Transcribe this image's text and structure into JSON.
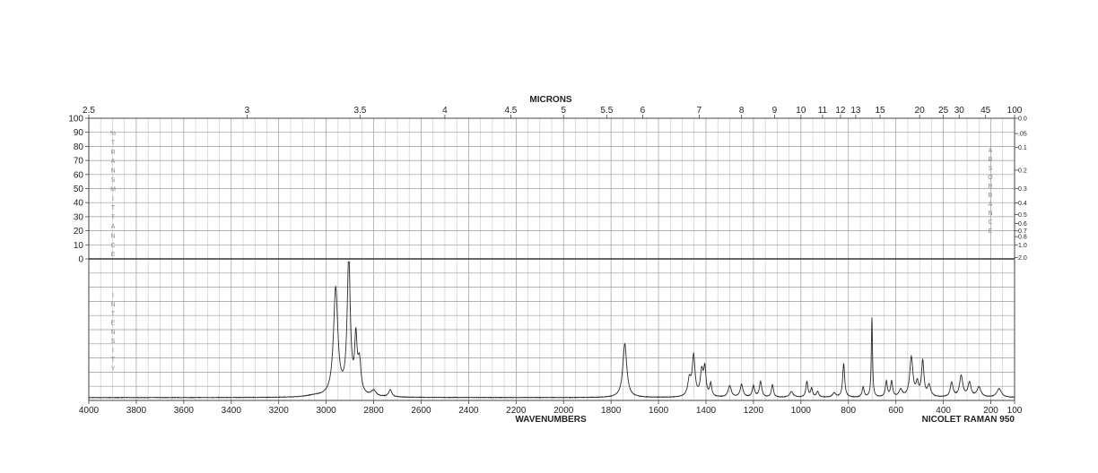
{
  "chart_data": {
    "type": "line",
    "top_axis_title": "MICRONS",
    "bottom_axis_title": "WAVENUMBERS",
    "instrument_label": "NICOLET RAMAN 950",
    "left_label_top": "%TRANSMITTANCE",
    "left_label_bottom": "INTENSITY",
    "right_label_top": "ABSORBANCE",
    "xlim": [
      4000,
      100
    ],
    "x_ticks": [
      4000,
      3800,
      3600,
      3400,
      3200,
      3000,
      2800,
      2600,
      2400,
      2200,
      2000,
      1800,
      1600,
      1400,
      1200,
      1000,
      800,
      600,
      400,
      200,
      100
    ],
    "micron_ticks": [
      {
        "label": "2.5",
        "um": 2.5
      },
      {
        "label": "3",
        "um": 3
      },
      {
        "label": "3.5",
        "um": 3.5
      },
      {
        "label": "4",
        "um": 4
      },
      {
        "label": "4.5",
        "um": 4.5
      },
      {
        "label": "5",
        "um": 5
      },
      {
        "label": "5.5",
        "um": 5.5
      },
      {
        "label": "6",
        "um": 6
      },
      {
        "label": "7",
        "um": 7
      },
      {
        "label": "8",
        "um": 8
      },
      {
        "label": "9",
        "um": 9
      },
      {
        "label": "10",
        "um": 10
      },
      {
        "label": "11",
        "um": 11
      },
      {
        "label": "12",
        "um": 12
      },
      {
        "label": "13",
        "um": 13
      },
      {
        "label": "15",
        "um": 15
      },
      {
        "label": "20",
        "um": 20
      },
      {
        "label": "25",
        "um": 25
      },
      {
        "label": "30",
        "um": 30
      },
      {
        "label": "45",
        "um": 45
      },
      {
        "label": "100",
        "um": 100
      }
    ],
    "transmittance_ticks": [
      "100",
      "90",
      "80",
      "70",
      "60",
      "50",
      "40",
      "30",
      "20",
      "10",
      "0"
    ],
    "absorbance_ticks": [
      {
        "label": "0.0",
        "a": 0.0
      },
      {
        "label": ".05",
        "a": 0.05
      },
      {
        "label": "0.1",
        "a": 0.1
      },
      {
        "label": "0.2",
        "a": 0.2
      },
      {
        "label": "0.3",
        "a": 0.3
      },
      {
        "label": "0.4",
        "a": 0.4
      },
      {
        "label": "0.5",
        "a": 0.5
      },
      {
        "label": "0.6",
        "a": 0.6
      },
      {
        "label": "0.7",
        "a": 0.7
      },
      {
        "label": "0.8",
        "a": 0.8
      },
      {
        "label": "1.0",
        "a": 1.0
      },
      {
        "label": "2.0",
        "a": 2.0
      }
    ],
    "intensity_range": [
      0,
      100
    ],
    "baseline": 2,
    "peaks": [
      {
        "x": 3050,
        "h": 1.0,
        "w": 40
      },
      {
        "x": 2960,
        "h": 76,
        "w": 11
      },
      {
        "x": 2905,
        "h": 96,
        "w": 8
      },
      {
        "x": 2875,
        "h": 37,
        "w": 6
      },
      {
        "x": 2860,
        "h": 22,
        "w": 8
      },
      {
        "x": 2800,
        "h": 4,
        "w": 12
      },
      {
        "x": 2730,
        "h": 5,
        "w": 8
      },
      {
        "x": 1742,
        "h": 38,
        "w": 10
      },
      {
        "x": 1470,
        "h": 12,
        "w": 8
      },
      {
        "x": 1452,
        "h": 28,
        "w": 7
      },
      {
        "x": 1418,
        "h": 17,
        "w": 7
      },
      {
        "x": 1405,
        "h": 19,
        "w": 6
      },
      {
        "x": 1380,
        "h": 9,
        "w": 5
      },
      {
        "x": 1300,
        "h": 8,
        "w": 8
      },
      {
        "x": 1250,
        "h": 9,
        "w": 7
      },
      {
        "x": 1200,
        "h": 8,
        "w": 6
      },
      {
        "x": 1170,
        "h": 11,
        "w": 6
      },
      {
        "x": 1120,
        "h": 9,
        "w": 5
      },
      {
        "x": 1040,
        "h": 4,
        "w": 9
      },
      {
        "x": 975,
        "h": 11,
        "w": 5
      },
      {
        "x": 955,
        "h": 6,
        "w": 5
      },
      {
        "x": 930,
        "h": 4,
        "w": 6
      },
      {
        "x": 860,
        "h": 3,
        "w": 8
      },
      {
        "x": 820,
        "h": 24,
        "w": 5
      },
      {
        "x": 738,
        "h": 7,
        "w": 5
      },
      {
        "x": 701,
        "h": 56,
        "w": 3
      },
      {
        "x": 640,
        "h": 11,
        "w": 5
      },
      {
        "x": 618,
        "h": 11,
        "w": 5
      },
      {
        "x": 580,
        "h": 5,
        "w": 8
      },
      {
        "x": 535,
        "h": 28,
        "w": 8
      },
      {
        "x": 510,
        "h": 9,
        "w": 6
      },
      {
        "x": 487,
        "h": 25,
        "w": 6
      },
      {
        "x": 460,
        "h": 8,
        "w": 8
      },
      {
        "x": 365,
        "h": 10,
        "w": 7
      },
      {
        "x": 325,
        "h": 15,
        "w": 8
      },
      {
        "x": 290,
        "h": 10,
        "w": 8
      },
      {
        "x": 250,
        "h": 7,
        "w": 10
      },
      {
        "x": 165,
        "h": 6,
        "w": 12
      }
    ]
  }
}
